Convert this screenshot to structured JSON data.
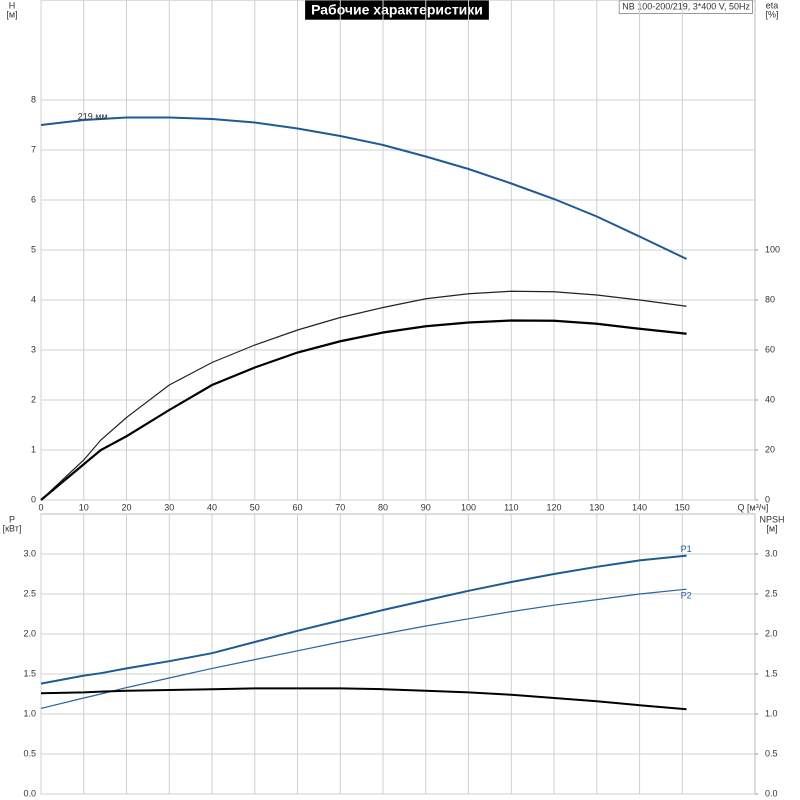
{
  "title": "Рабочие характеристики",
  "subtitle": "NB 100-200/219, 3*400 V, 50Hz",
  "chart_data": [
    {
      "type": "line",
      "xlabel": "Q [м³/ч]",
      "ylabel": "H",
      "ylabel_unit": "[м]",
      "y2label": "eta",
      "y2label_unit": "[%]",
      "x": [
        0,
        10,
        14,
        20,
        30,
        40,
        50,
        60,
        70,
        80,
        90,
        100,
        110,
        120,
        130,
        140,
        151
      ],
      "xlim": [
        0,
        167
      ],
      "xticks": [
        0,
        10,
        20,
        30,
        40,
        50,
        60,
        70,
        80,
        90,
        100,
        110,
        120,
        130,
        140,
        150
      ],
      "ylim": [
        0,
        10
      ],
      "yticks": [
        0,
        1,
        2,
        3,
        4,
        5,
        6,
        7,
        8
      ],
      "y2lim": [
        0,
        200
      ],
      "y2ticks": [
        0,
        20,
        40,
        60,
        80,
        100
      ],
      "grid": true,
      "series": [
        {
          "name": "219 мм",
          "label_at": "start",
          "color": "#1f5a96",
          "line_width": 2,
          "values": [
            7.5,
            7.6,
            7.62,
            7.65,
            7.65,
            7.62,
            7.55,
            7.43,
            7.28,
            7.1,
            6.87,
            6.62,
            6.33,
            6.02,
            5.67,
            5.27,
            4.82
          ]
        },
        {
          "axis": "y2",
          "color": "#222222",
          "line_width": 1.2,
          "values": [
            0,
            16,
            24,
            33,
            46,
            55,
            62,
            68,
            73,
            77,
            80.5,
            82.5,
            83.5,
            83.3,
            82,
            80,
            77.5
          ]
        },
        {
          "axis": "y2",
          "color": "#000000",
          "line_width": 2.2,
          "values": [
            0,
            14.3,
            20,
            25.5,
            36,
            46,
            53,
            59,
            63.5,
            67,
            69.5,
            71,
            71.8,
            71.7,
            70.5,
            68.5,
            66.5
          ]
        }
      ]
    },
    {
      "type": "line",
      "ylabel": "P",
      "ylabel_unit": "[кВт]",
      "y2label": "NPSH",
      "y2label_unit": "[м]",
      "x": [
        0,
        10,
        14,
        20,
        30,
        40,
        50,
        60,
        70,
        80,
        90,
        100,
        110,
        120,
        130,
        140,
        151
      ],
      "xlim": [
        0,
        167
      ],
      "ylim": [
        0,
        3.5
      ],
      "yticks": [
        {
          "value": 0,
          "label": "0.0"
        },
        0.5,
        {
          "value": 1,
          "label": "1.0"
        },
        1.5,
        {
          "value": 2,
          "label": "2.0"
        },
        2.5,
        {
          "value": 3,
          "label": "3.0"
        }
      ],
      "y2lim": [
        0,
        3.5
      ],
      "y2ticks": [
        {
          "value": 0,
          "label": "0.0"
        },
        0.5,
        {
          "value": 1,
          "label": "1.0"
        },
        1.5,
        {
          "value": 2,
          "label": "2.0"
        },
        2.5,
        {
          "value": 3,
          "label": "3.0"
        }
      ],
      "grid": true,
      "series": [
        {
          "name": "P1",
          "label_at": "end",
          "color": "#1f5a96",
          "line_width": 2,
          "values": [
            1.38,
            1.48,
            1.51,
            1.57,
            1.66,
            1.76,
            1.9,
            2.04,
            2.17,
            2.3,
            2.42,
            2.54,
            2.65,
            2.75,
            2.84,
            2.92,
            2.98
          ]
        },
        {
          "name": "P2",
          "label_at": "end",
          "color": "#2a64a0",
          "line_width": 1.2,
          "values": [
            1.07,
            1.2,
            1.25,
            1.33,
            1.45,
            1.57,
            1.68,
            1.79,
            1.9,
            2.0,
            2.1,
            2.19,
            2.28,
            2.36,
            2.43,
            2.5,
            2.56
          ]
        },
        {
          "axis": "y2",
          "color": "#000000",
          "line_width": 2,
          "values": [
            1.26,
            1.27,
            1.28,
            1.29,
            1.3,
            1.31,
            1.32,
            1.32,
            1.32,
            1.31,
            1.29,
            1.27,
            1.24,
            1.2,
            1.16,
            1.11,
            1.06
          ]
        }
      ]
    }
  ]
}
